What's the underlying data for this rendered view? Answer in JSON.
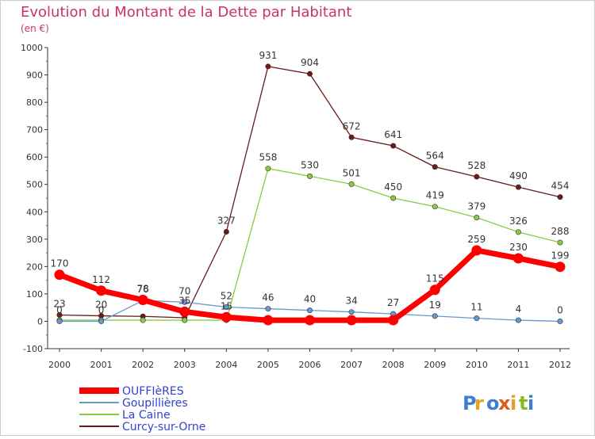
{
  "chart_data": {
    "type": "line",
    "title": "Evolution du Montant de la Dette par Habitant",
    "subtitle": "(en €)",
    "x": [
      "2000",
      "2001",
      "2002",
      "2003",
      "2004",
      "2005",
      "2006",
      "2007",
      "2008",
      "2009",
      "2010",
      "2011",
      "2012"
    ],
    "y_ticks": [
      "-100",
      "0",
      "100",
      "200",
      "300",
      "400",
      "500",
      "600",
      "700",
      "800",
      "900",
      "1000"
    ],
    "ylim": [
      -100,
      1000
    ],
    "grid": false,
    "legend_position": "bottom-left",
    "series": [
      {
        "name": "Curcy-sur-Orne",
        "color": "#6b1a1a",
        "values": [
          23,
          20,
          18,
          13,
          327,
          931,
          904,
          672,
          641,
          564,
          528,
          490,
          454
        ],
        "labels": [
          "23",
          "20",
          "",
          "",
          "327",
          "931",
          "904",
          "672",
          "641",
          "564",
          "528",
          "490",
          "454"
        ]
      },
      {
        "name": "La Caine",
        "color": "#88cc44",
        "values": [
          4,
          4,
          4,
          4,
          4,
          558,
          530,
          501,
          450,
          419,
          379,
          326,
          288
        ],
        "labels": [
          "",
          "",
          "",
          "",
          "",
          "558",
          "530",
          "501",
          "450",
          "419",
          "379",
          "326",
          "288"
        ]
      },
      {
        "name": "Goupillières",
        "color": "#6699cc",
        "values": [
          0,
          0,
          76,
          70,
          52,
          46,
          40,
          34,
          27,
          19,
          11,
          4,
          0
        ],
        "labels": [
          "0",
          "0",
          "76",
          "70",
          "52",
          "46",
          "40",
          "34",
          "27",
          "19",
          "11",
          "4",
          "0"
        ]
      },
      {
        "name": "OUFFIèRES",
        "color": "#ff0000",
        "values": [
          170,
          112,
          78,
          35,
          15,
          4,
          4,
          4,
          4,
          115,
          259,
          230,
          199
        ],
        "labels": [
          "170",
          "112",
          "78",
          "35",
          "15",
          "",
          "",
          "",
          "",
          "115",
          "259",
          "230",
          "199"
        ]
      }
    ],
    "legend": [
      {
        "name": "OUFFIèRES",
        "color": "#ff0000"
      },
      {
        "name": "Goupillières",
        "color": "#6699cc"
      },
      {
        "name": "La Caine",
        "color": "#88cc44"
      },
      {
        "name": "Curcy-sur-Orne",
        "color": "#6b1a1a"
      }
    ]
  },
  "watermark": "Proxiti"
}
